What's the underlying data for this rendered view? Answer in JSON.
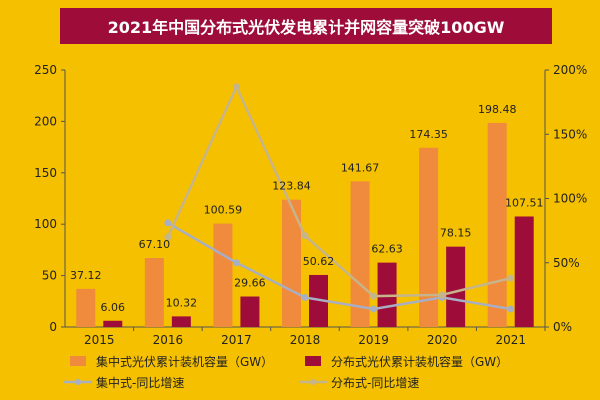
{
  "chart_data": {
    "type": "bar",
    "title": "2021年中国分布式光伏发电累计并网容量突破100GW",
    "categories": [
      "2015",
      "2016",
      "2017",
      "2018",
      "2019",
      "2020",
      "2021"
    ],
    "series": [
      {
        "name": "集中式光伏累计装机容量（GW）",
        "type": "bar",
        "axis": "left",
        "color": "#f08a3c",
        "values": [
          37.12,
          67.1,
          100.59,
          123.84,
          141.67,
          174.35,
          198.48
        ]
      },
      {
        "name": "分布式光伏累计装机容量（GW）",
        "type": "bar",
        "axis": "left",
        "color": "#9e0d3a",
        "values": [
          6.06,
          10.32,
          29.66,
          50.62,
          62.63,
          78.15,
          107.51
        ]
      },
      {
        "name": "集中式-同比增速",
        "type": "line",
        "axis": "right",
        "color": "#a8aec4",
        "marker": "circle",
        "values": [
          null,
          0.81,
          0.5,
          0.23,
          0.14,
          0.23,
          0.14
        ]
      },
      {
        "name": "分布式-同比增速",
        "type": "line",
        "axis": "right",
        "color": "#c6b48a",
        "marker": "circle",
        "values": [
          null,
          0.7,
          1.87,
          0.71,
          0.24,
          0.25,
          0.38
        ]
      }
    ],
    "data_labels": {
      "集中式光伏累计装机容量（GW）": [
        "37.12",
        "67.10",
        "100.59",
        "123.84",
        "141.67",
        "174.35",
        "198.48"
      ],
      "分布式光伏累计装机容量（GW）": [
        "6.06",
        "10.32",
        "29.66",
        "50.62",
        "62.63",
        "78.15",
        "107.51"
      ]
    },
    "y_left": {
      "min": 0,
      "max": 250,
      "ticks": [
        "0",
        "50",
        "100",
        "150",
        "200",
        "250"
      ]
    },
    "y_right": {
      "min": 0,
      "max": 2.0,
      "ticks": [
        "0%",
        "50%",
        "100%",
        "150%",
        "200%"
      ]
    },
    "grid": false,
    "legend": "bottom"
  },
  "colors": {
    "background": "#f5c000",
    "title_bar": "#9e0d3a",
    "title_text": "#ffffff"
  }
}
